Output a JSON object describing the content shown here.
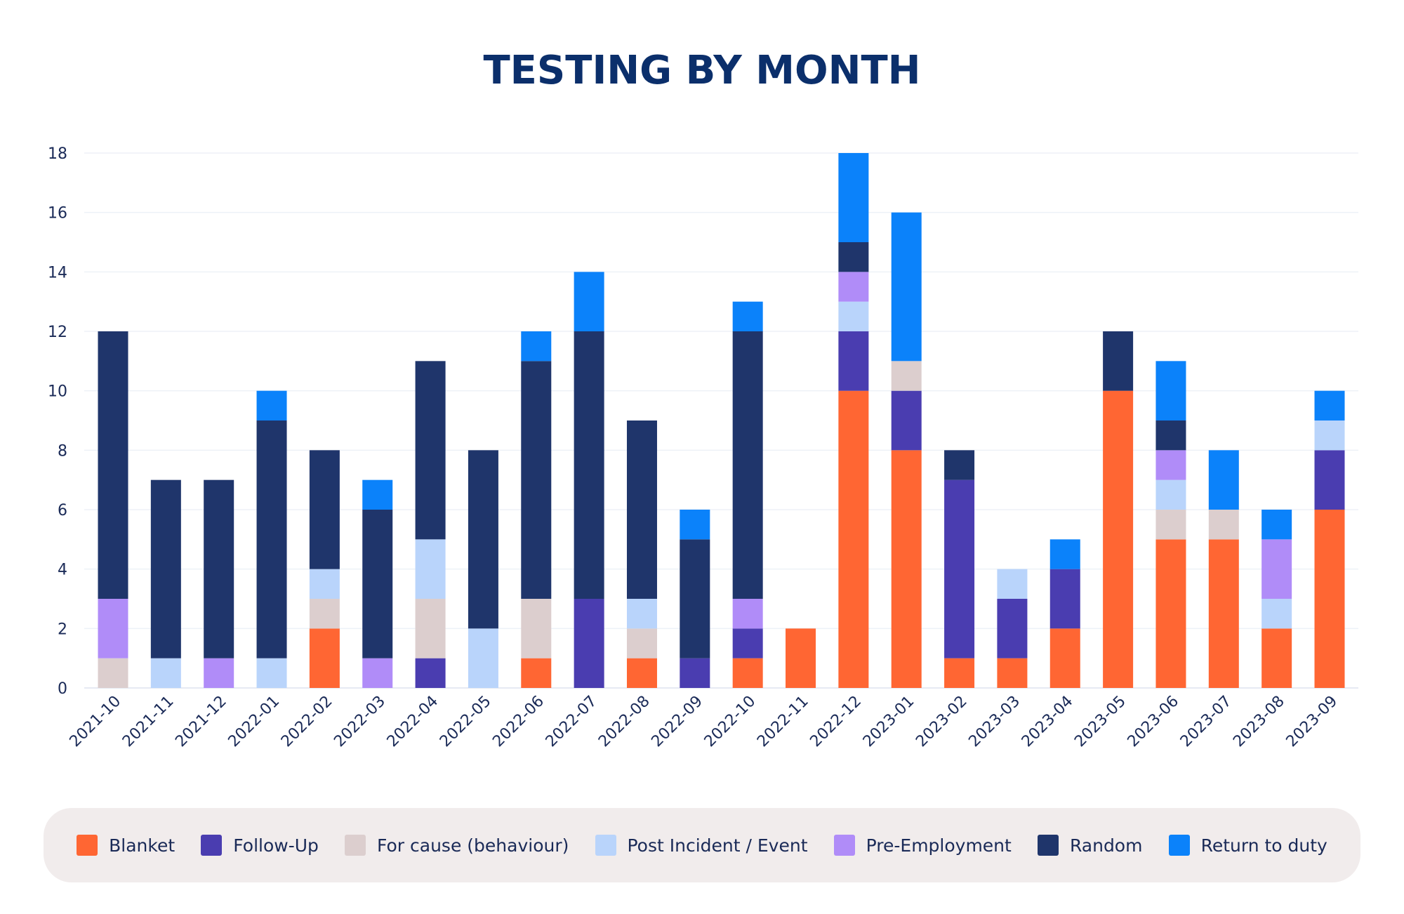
{
  "chart_data": {
    "type": "bar",
    "stacked": true,
    "title": "TESTING BY MONTH",
    "xlabel": "",
    "ylabel": "",
    "ylim": [
      0,
      18
    ],
    "yticks": [
      0,
      2,
      4,
      6,
      8,
      10,
      12,
      14,
      16,
      18
    ],
    "grid": true,
    "legend_position": "bottom",
    "categories": [
      "2021-10",
      "2021-11",
      "2021-12",
      "2022-01",
      "2022-02",
      "2022-03",
      "2022-04",
      "2022-05",
      "2022-06",
      "2022-07",
      "2022-08",
      "2022-09",
      "2022-10",
      "2022-11",
      "2022-12",
      "2023-01",
      "2023-02",
      "2023-03",
      "2023-04",
      "2023-05",
      "2023-06",
      "2023-07",
      "2023-08",
      "2023-09"
    ],
    "series": [
      {
        "name": "Blanket",
        "color": "#ff6633",
        "values": [
          0,
          0,
          0,
          0,
          2,
          0,
          0,
          0,
          1,
          0,
          1,
          0,
          1,
          2,
          10,
          8,
          1,
          1,
          2,
          10,
          5,
          5,
          2,
          6
        ]
      },
      {
        "name": "Follow-Up",
        "color": "#4a3db0",
        "values": [
          0,
          0,
          0,
          0,
          0,
          0,
          1,
          0,
          0,
          3,
          0,
          1,
          1,
          0,
          2,
          2,
          6,
          2,
          2,
          0,
          0,
          0,
          0,
          2
        ]
      },
      {
        "name": "For cause (behaviour)",
        "color": "#dccece",
        "values": [
          1,
          0,
          0,
          0,
          1,
          0,
          2,
          0,
          2,
          0,
          1,
          0,
          0,
          0,
          0,
          1,
          0,
          0,
          0,
          0,
          1,
          1,
          0,
          0
        ]
      },
      {
        "name": "Post Incident / Event",
        "color": "#b9d4fb",
        "values": [
          0,
          1,
          0,
          1,
          1,
          0,
          2,
          2,
          0,
          0,
          1,
          0,
          0,
          0,
          1,
          0,
          0,
          1,
          0,
          0,
          1,
          0,
          1,
          1
        ]
      },
      {
        "name": "Pre-Employment",
        "color": "#b08cf8",
        "values": [
          2,
          0,
          1,
          0,
          0,
          1,
          0,
          0,
          0,
          0,
          0,
          0,
          1,
          0,
          1,
          0,
          0,
          0,
          0,
          0,
          1,
          0,
          2,
          0
        ]
      },
      {
        "name": "Random",
        "color": "#1f356b",
        "values": [
          9,
          6,
          6,
          8,
          4,
          5,
          6,
          6,
          8,
          9,
          6,
          4,
          9,
          0,
          1,
          0,
          1,
          0,
          0,
          2,
          1,
          0,
          0,
          0
        ]
      },
      {
        "name": "Return to duty",
        "color": "#0b82fa",
        "values": [
          0,
          0,
          0,
          1,
          0,
          1,
          0,
          0,
          1,
          2,
          0,
          1,
          1,
          0,
          3,
          5,
          0,
          0,
          1,
          0,
          2,
          2,
          1,
          1
        ]
      }
    ]
  }
}
